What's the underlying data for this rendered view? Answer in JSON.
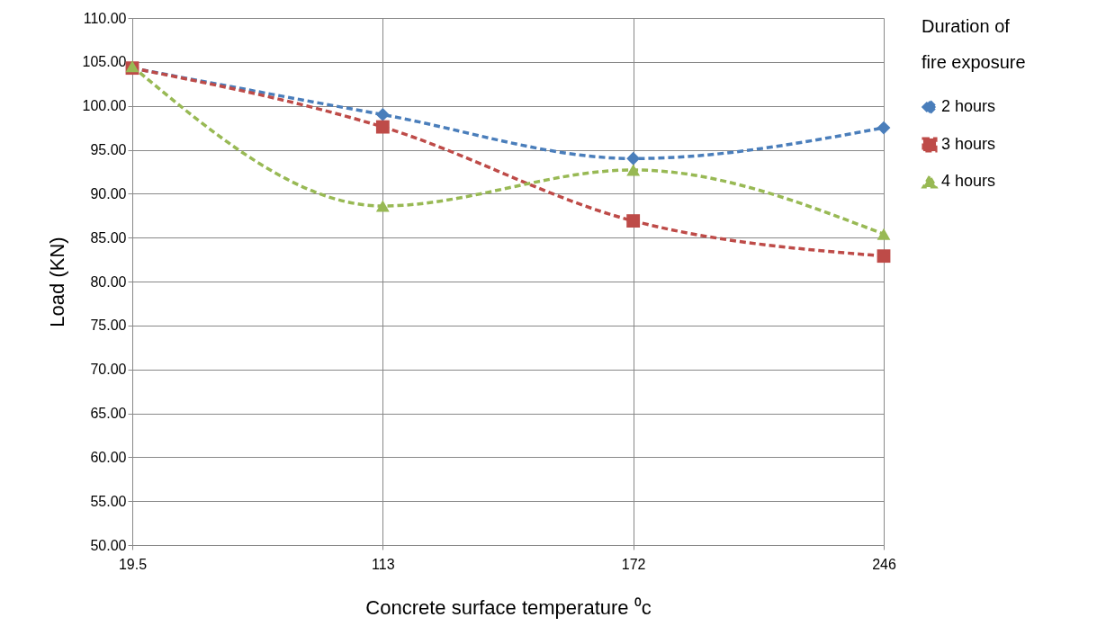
{
  "chart_data": {
    "type": "line",
    "xlabel": "Concrete surface temperature ⁰c",
    "ylabel": "Load (KN)",
    "legend_title": "Duration of fire exposure",
    "categories": [
      "19.5",
      "113",
      "172",
      "246"
    ],
    "series": [
      {
        "name": "2 hours",
        "color": "#4a7ebb",
        "marker": "diamond",
        "line_style": "dashed",
        "values": [
          104.3,
          99.0,
          94.0,
          97.5
        ]
      },
      {
        "name": "3 hours",
        "color": "#be4b48",
        "marker": "square",
        "line_style": "dashed",
        "values": [
          104.3,
          97.6,
          86.9,
          82.9
        ]
      },
      {
        "name": "4 hours",
        "color": "#98b954",
        "marker": "triangle",
        "line_style": "dashed",
        "values": [
          104.5,
          88.6,
          92.7,
          85.4
        ]
      }
    ],
    "ylim": [
      50,
      110
    ],
    "yticks": [
      {
        "value": 50,
        "label": "50.00"
      },
      {
        "value": 55,
        "label": "55.00"
      },
      {
        "value": 60,
        "label": "60.00"
      },
      {
        "value": 65,
        "label": "65.00"
      },
      {
        "value": 70,
        "label": "70.00"
      },
      {
        "value": 75,
        "label": "75.00"
      },
      {
        "value": 80,
        "label": "80.00"
      },
      {
        "value": 85,
        "label": "85.00"
      },
      {
        "value": 90,
        "label": "90.00"
      },
      {
        "value": 95,
        "label": "95.00"
      },
      {
        "value": 100,
        "label": "100.00"
      },
      {
        "value": 105,
        "label": "105.00"
      },
      {
        "value": 110,
        "label": "110.00"
      }
    ],
    "grid": true,
    "legend": "right"
  }
}
